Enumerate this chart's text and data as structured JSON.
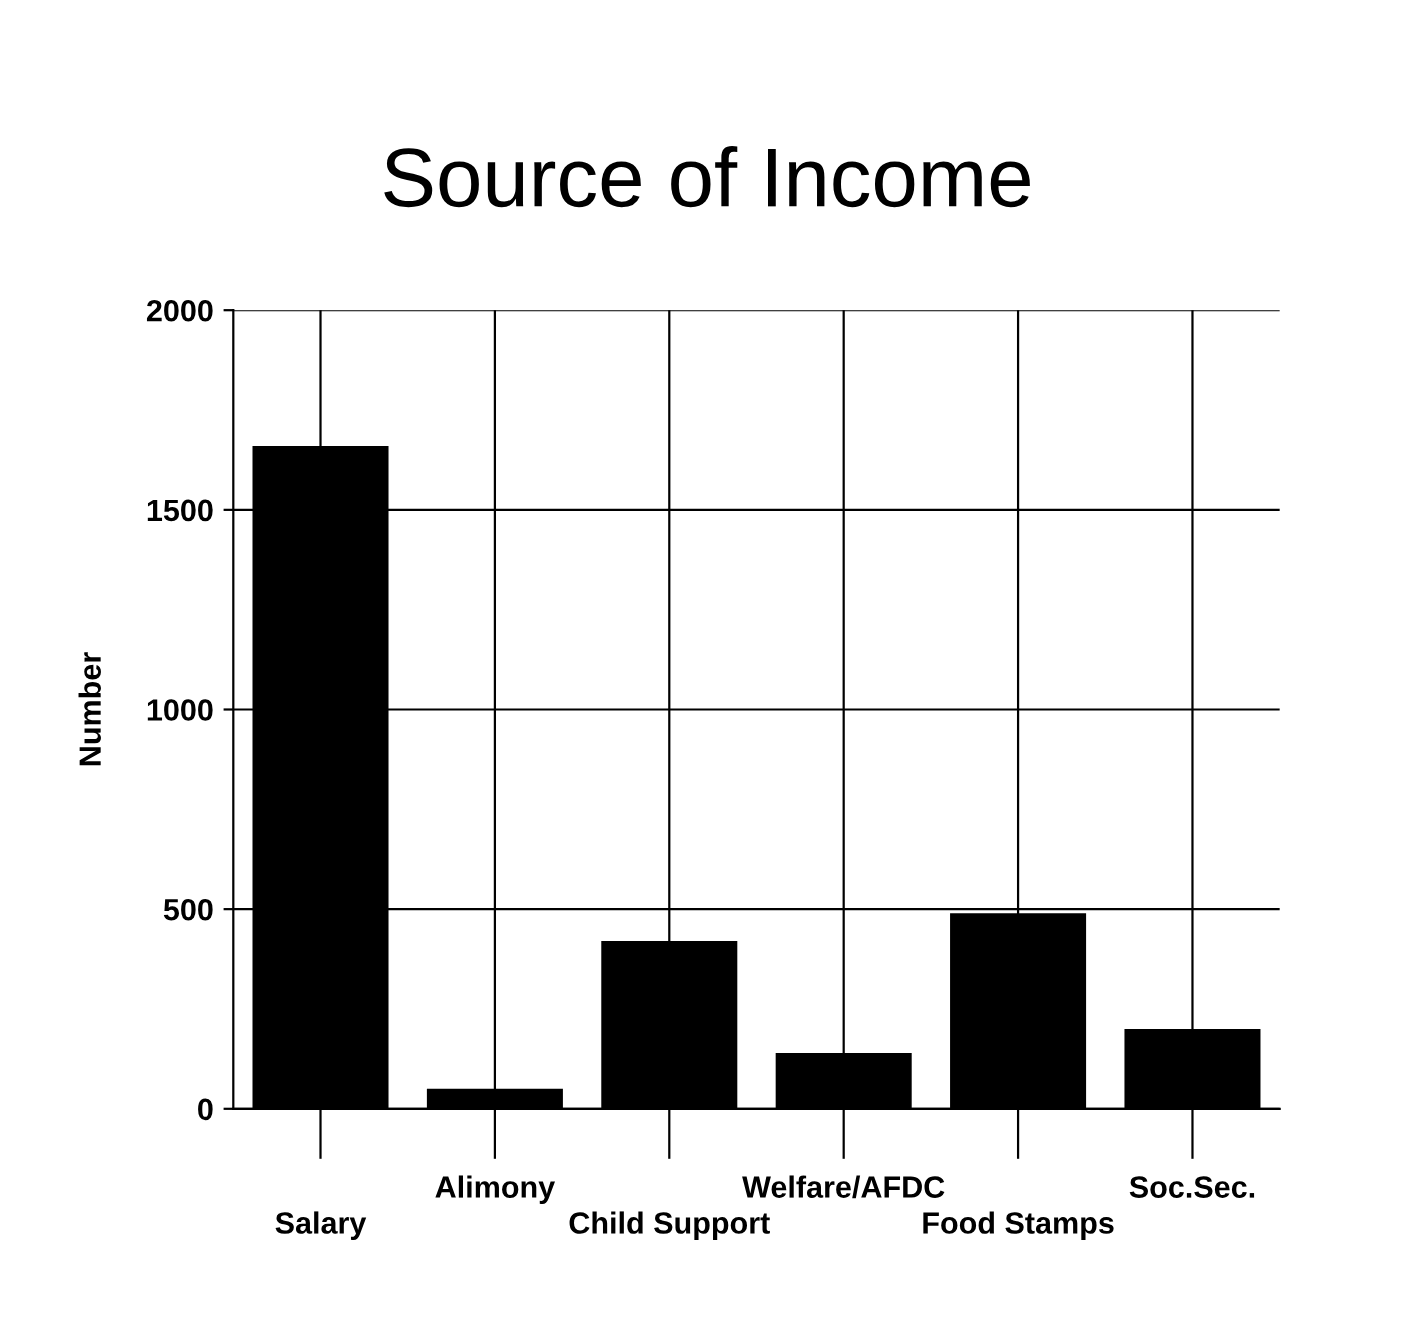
{
  "chart_data": {
    "type": "bar",
    "title": "Source of Income",
    "ylabel": "Number",
    "categories": [
      "Salary",
      "Alimony",
      "Child Support",
      "Welfare/AFDC",
      "Food Stamps",
      "Soc.Sec."
    ],
    "values": [
      1660,
      50,
      420,
      140,
      490,
      200
    ],
    "color": "#000000",
    "ylim": [
      0,
      2000
    ],
    "yticks": [
      0,
      500,
      1000,
      1500,
      2000
    ],
    "grid": true
  }
}
